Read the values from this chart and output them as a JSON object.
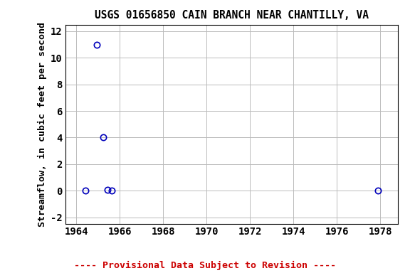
{
  "title": "USGS 01656850 CAIN BRANCH NEAR CHANTILLY, VA",
  "xlabel": "",
  "ylabel": "Streamflow, in cubic feet per second",
  "xlim": [
    1963.5,
    1978.8
  ],
  "ylim": [
    -2.5,
    12.5
  ],
  "xticks": [
    1964,
    1966,
    1968,
    1970,
    1972,
    1974,
    1976,
    1978
  ],
  "yticks": [
    -2,
    0,
    2,
    4,
    6,
    8,
    10,
    12
  ],
  "data_x": [
    1964.42,
    1964.95,
    1965.22,
    1965.42,
    1965.62,
    1977.88
  ],
  "data_y": [
    0.0,
    11.0,
    4.0,
    0.05,
    0.0,
    0.0
  ],
  "marker_color": "#0000bb",
  "marker_size": 6,
  "marker_linewidth": 1.2,
  "grid_color": "#bbbbbb",
  "background_color": "#ffffff",
  "title_fontsize": 10.5,
  "axis_label_fontsize": 9.5,
  "tick_fontsize": 10,
  "footer_text": "---- Provisional Data Subject to Revision ----",
  "footer_color": "#cc0000",
  "footer_fontsize": 9.5
}
